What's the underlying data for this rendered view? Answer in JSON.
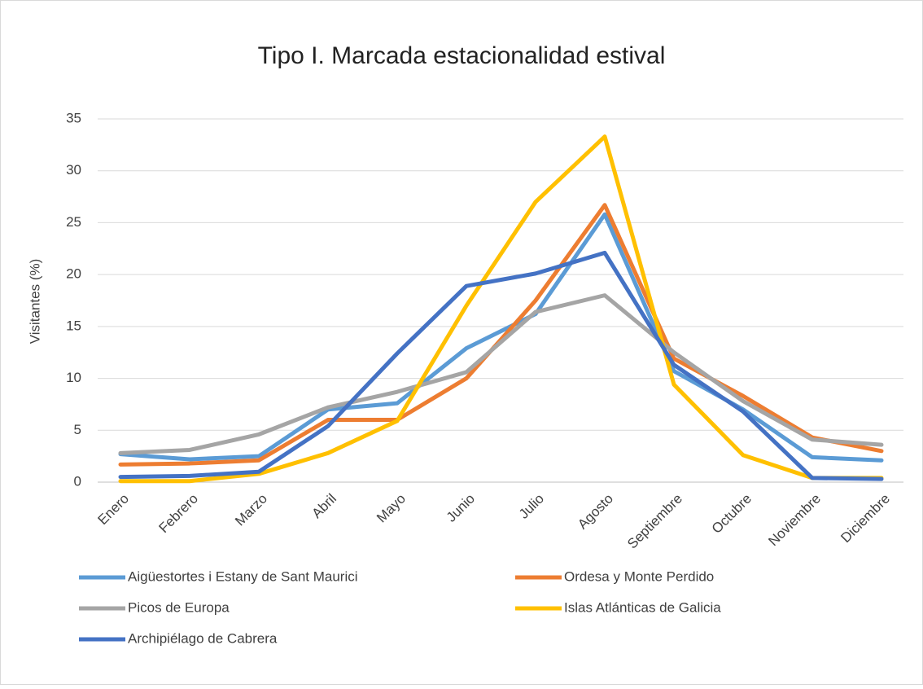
{
  "chart_data": {
    "type": "line",
    "title": "Tipo I. Marcada estacionalidad estival",
    "y_label": "Visitantes (%)",
    "categories": [
      "Enero",
      "Febrero",
      "Marzo",
      "Abril",
      "Mayo",
      "Junio",
      "Julio",
      "Agosto",
      "Septiembre",
      "Octubre",
      "Noviembre",
      "Diciembre"
    ],
    "series": [
      {
        "name": "Aigüestortes i Estany de Sant Maurici",
        "color": "#5b9bd5",
        "values": [
          2.7,
          2.2,
          2.5,
          7.0,
          7.6,
          12.9,
          16.2,
          25.8,
          10.7,
          7.0,
          2.4,
          2.1
        ]
      },
      {
        "name": "Ordesa y Monte Perdido",
        "color": "#ed7d31",
        "values": [
          1.7,
          1.8,
          2.1,
          6.0,
          6.0,
          10.0,
          17.5,
          26.7,
          11.9,
          8.3,
          4.3,
          3.0
        ]
      },
      {
        "name": "Picos de Europa",
        "color": "#a5a5a5",
        "values": [
          2.8,
          3.1,
          4.6,
          7.2,
          8.7,
          10.6,
          16.4,
          18.0,
          12.5,
          7.8,
          4.1,
          3.6
        ]
      },
      {
        "name": "Islas Atlánticas de Galicia",
        "color": "#ffc000",
        "values": [
          0.1,
          0.1,
          0.8,
          2.8,
          5.9,
          17.0,
          27.0,
          33.3,
          9.4,
          2.6,
          0.4,
          0.4
        ]
      },
      {
        "name": "Archipiélago de Cabrera",
        "color": "#4472c4",
        "values": [
          0.5,
          0.6,
          1.0,
          5.4,
          12.4,
          18.9,
          20.1,
          22.1,
          11.3,
          6.8,
          0.4,
          0.3
        ]
      }
    ],
    "ylim": [
      0,
      35
    ],
    "yticks": [
      0,
      5,
      10,
      15,
      20,
      25,
      30,
      35
    ],
    "grid": true
  }
}
